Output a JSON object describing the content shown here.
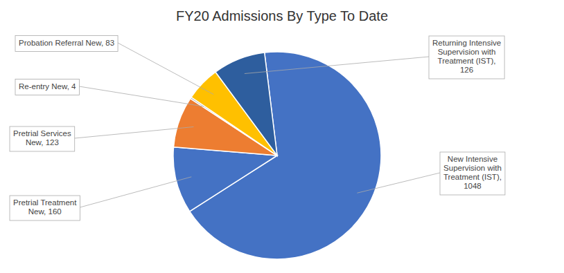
{
  "chart_data": {
    "type": "pie",
    "title": "FY20 Admissions By Type To Date",
    "categories": [
      "New Intensive\nSupervision with\nTreatment (IST),\n1048",
      "Pretrial Treatment\nNew, 160",
      "Pretrial Services\nNew, 123",
      "Re-entry New, 4",
      "Probation Referral New, 83",
      "Returning Intensive\nSupervision with\nTreatment (IST),\n126"
    ],
    "values": [
      1048,
      160,
      123,
      4,
      83,
      126
    ],
    "colors": [
      "#4472C4",
      "#4472C4",
      "#ED7D31",
      "#A5A5A5",
      "#FFC000",
      "#2E5E9E"
    ]
  }
}
